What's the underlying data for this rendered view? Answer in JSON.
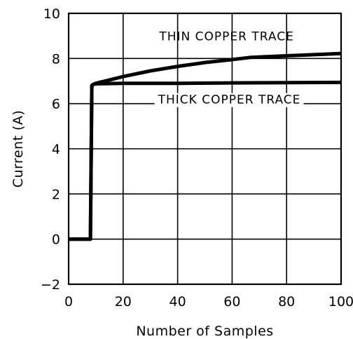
{
  "chart_data": {
    "type": "line",
    "xlabel": "Number of Samples",
    "ylabel": "Current (A)",
    "xlim": [
      0,
      100
    ],
    "ylim": [
      -2,
      10
    ],
    "xticks": [
      "0",
      "20",
      "40",
      "60",
      "80",
      "100"
    ],
    "yticks": [
      "−2",
      "0",
      "2",
      "4",
      "6",
      "8",
      "10"
    ],
    "grid": true,
    "legend": "inline labels",
    "series": [
      {
        "name": "THIN COPPER TRACE",
        "x": [
          0,
          8,
          8.5,
          9,
          10,
          15,
          20,
          30,
          40,
          50,
          60,
          67,
          80,
          100
        ],
        "y": [
          0,
          0,
          6.8,
          6.85,
          6.9,
          7.05,
          7.2,
          7.45,
          7.65,
          7.82,
          7.95,
          8.05,
          8.12,
          8.22
        ]
      },
      {
        "name": "THICK COPPER TRACE",
        "x": [
          0,
          8,
          8.5,
          9,
          10,
          20,
          40,
          60,
          80,
          100
        ],
        "y": [
          0,
          0,
          6.8,
          6.85,
          6.88,
          6.9,
          6.9,
          6.92,
          6.93,
          6.94
        ]
      }
    ]
  }
}
